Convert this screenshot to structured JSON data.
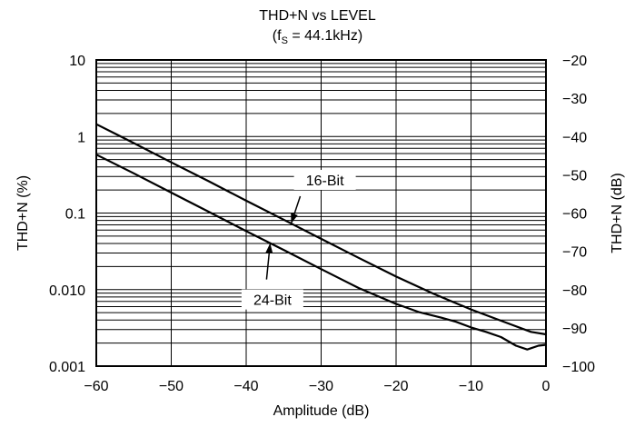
{
  "chart_data": {
    "type": "line",
    "title": "THD+N vs LEVEL",
    "subtitle": {
      "prefix": "(f",
      "subscript": "S",
      "suffix": " = 44.1kHz)"
    },
    "xlabel": "Amplitude (dB)",
    "ylabel_left": "THD+N (%)",
    "ylabel_right": "THD+N (dB)",
    "xlim": [
      -60,
      0
    ],
    "ylim_left": [
      0.001,
      10
    ],
    "ylim_right": [
      -100,
      -20
    ],
    "y_scale_left": "log",
    "grid": true,
    "x_ticks": [
      -60,
      -50,
      -40,
      -30,
      -20,
      -10,
      0
    ],
    "x_tick_labels": [
      "−60",
      "−50",
      "−40",
      "−30",
      "−20",
      "−10",
      "0"
    ],
    "y_left_ticks": [
      10,
      1,
      0.1,
      0.01,
      0.001
    ],
    "y_left_tick_labels": [
      "10",
      "1",
      "0.1",
      "0.010",
      "0.001"
    ],
    "y_right_ticks": [
      -20,
      -30,
      -40,
      -50,
      -60,
      -70,
      -80,
      -90,
      -100
    ],
    "y_right_tick_labels": [
      "−20",
      "−30",
      "−40",
      "−50",
      "−60",
      "−70",
      "−80",
      "−90",
      "−100"
    ],
    "series": [
      {
        "name": "16-Bit",
        "x": [
          -60,
          -55,
          -50,
          -45,
          -40,
          -35,
          -30,
          -25,
          -20,
          -15,
          -10,
          -5,
          -2,
          0
        ],
        "y": [
          1.45,
          0.82,
          0.46,
          0.26,
          0.145,
          0.082,
          0.046,
          0.026,
          0.0148,
          0.0088,
          0.0055,
          0.0036,
          0.0028,
          0.0026
        ]
      },
      {
        "name": "24-Bit",
        "x": [
          -60,
          -55,
          -50,
          -45,
          -40,
          -35,
          -30,
          -25,
          -20,
          -17,
          -14,
          -12,
          -10,
          -8,
          -6,
          -4,
          -2.5,
          -1,
          0
        ],
        "y": [
          0.58,
          0.33,
          0.185,
          0.104,
          0.058,
          0.033,
          0.0185,
          0.0105,
          0.0065,
          0.0051,
          0.0043,
          0.0038,
          0.0032,
          0.0028,
          0.0024,
          0.00185,
          0.00165,
          0.00185,
          0.0019
        ]
      }
    ],
    "annotations": [
      {
        "text": "16-Bit",
        "series": "16-Bit"
      },
      {
        "text": "24-Bit",
        "series": "24-Bit"
      }
    ]
  }
}
